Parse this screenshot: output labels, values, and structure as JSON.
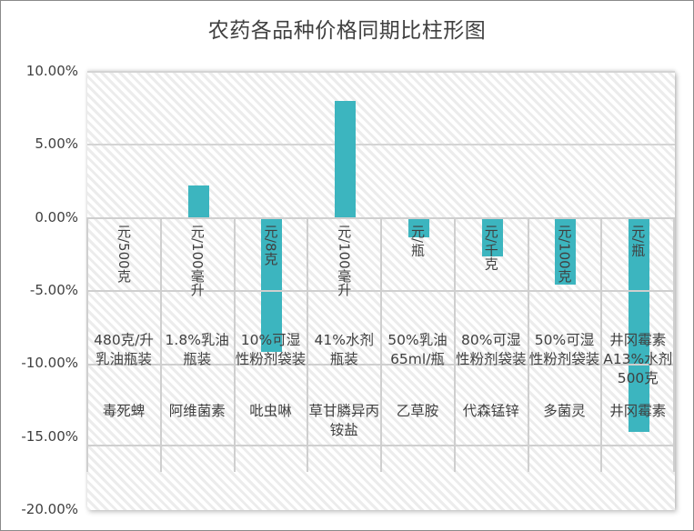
{
  "chart_data": {
    "type": "bar",
    "title": "农药各品种价格同期比柱形图",
    "xlabel": "",
    "ylabel": "",
    "ylim": [
      -0.2,
      0.1
    ],
    "y_ticks": [
      "10.00%",
      "5.00%",
      "0.00%",
      "-5.00%",
      "-10.00%",
      "-15.00%",
      "-20.00%"
    ],
    "grid": true,
    "legend": null,
    "bar_color": "#3cb5bf",
    "categories": [
      "毒死蜱",
      "阿维菌素",
      "吡虫啉",
      "草甘膦异丙铵盐",
      "乙草胺",
      "代森锰锌",
      "多菌灵",
      "井冈霉素"
    ],
    "specs": [
      "480克/升乳油瓶装",
      "1.8%乳油瓶装",
      "10%可湿性粉剂袋装",
      "41%水剂瓶装",
      "50%乳油65ml/瓶",
      "80%可湿性粉剂袋装",
      "50%可湿性粉剂袋装",
      "井冈霉素A13%水剂 500克"
    ],
    "units": [
      "元/500克",
      "元/100毫升",
      "元/8克",
      "元/100毫升",
      "元/瓶",
      "元/千克",
      "元/100克",
      "元/瓶"
    ],
    "values": [
      0.0,
      0.022,
      -0.091,
      0.08,
      -0.0125,
      -0.026,
      -0.045,
      -0.146
    ]
  },
  "y_axis": {
    "labels": [
      "10.00%",
      "5.00%",
      "0.00%",
      "-5.00%",
      "-10.00%",
      "-15.00%",
      "-20.00%"
    ]
  },
  "table": {
    "rows": [
      {
        "unit": "元/500克",
        "spec": "480克/升乳油瓶装",
        "name": "毒死蜱"
      },
      {
        "unit": "元/100毫升",
        "spec": "1.8%乳油瓶装",
        "name": "阿维菌素"
      },
      {
        "unit": "元/8克",
        "spec": "10%可湿性粉剂袋装",
        "name": "吡虫啉"
      },
      {
        "unit": "元/100毫升",
        "spec": "41%水剂瓶装",
        "name": "草甘膦异丙铵盐"
      },
      {
        "unit": "元/瓶",
        "spec": "50%乳油65ml/瓶",
        "name": "乙草胺"
      },
      {
        "unit": "元/千克",
        "spec": "80%可湿性粉剂袋装",
        "name": "代森锰锌"
      },
      {
        "unit": "元/100克",
        "spec": "50%可湿性粉剂袋装",
        "name": "多菌灵"
      },
      {
        "unit": "元/瓶",
        "spec": "井冈霉素A13%水剂 500克",
        "name": "井冈霉素"
      }
    ]
  }
}
